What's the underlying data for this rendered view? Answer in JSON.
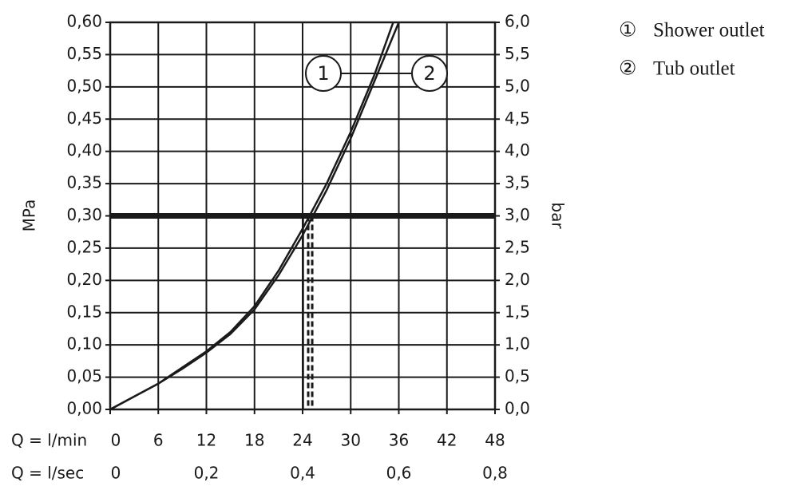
{
  "chart_data": {
    "type": "line",
    "ylabel": "MPa",
    "y2label": "bar",
    "xlabel": "Q = l/min",
    "x2label": "Q = l/sec",
    "xlim": [
      0,
      48
    ],
    "xticks": [
      0,
      6,
      12,
      18,
      24,
      30,
      36,
      42,
      48
    ],
    "x2lim": [
      0,
      0.8
    ],
    "x2ticks": [
      0,
      {
        "value": 0.2,
        "label": "0,2"
      },
      {
        "value": 0.4,
        "label": "0,4"
      },
      {
        "value": 0.6,
        "label": "0,6"
      },
      {
        "value": 0.8,
        "label": "0,8"
      }
    ],
    "ylim": [
      0,
      0.6
    ],
    "yticks": [
      {
        "value": 0,
        "label": "0,00"
      },
      {
        "value": 0.05,
        "label": "0,05"
      },
      {
        "value": 0.1,
        "label": "0,10"
      },
      {
        "value": 0.15,
        "label": "0,15"
      },
      {
        "value": 0.2,
        "label": "0,20"
      },
      {
        "value": 0.25,
        "label": "0,25"
      },
      {
        "value": 0.3,
        "label": "0,30"
      },
      {
        "value": 0.35,
        "label": "0,35"
      },
      {
        "value": 0.4,
        "label": "0,40"
      },
      {
        "value": 0.45,
        "label": "0,45"
      },
      {
        "value": 0.5,
        "label": "0,50"
      },
      {
        "value": 0.55,
        "label": "0,55"
      },
      {
        "value": 0.6,
        "label": "0,60"
      }
    ],
    "y2lim": [
      0,
      6
    ],
    "y2ticks": [
      {
        "value": 0,
        "label": "0,0"
      },
      {
        "value": 0.5,
        "label": "0,5"
      },
      {
        "value": 1,
        "label": "1,0"
      },
      {
        "value": 1.5,
        "label": "1,5"
      },
      {
        "value": 2,
        "label": "2,0"
      },
      {
        "value": 2.5,
        "label": "2,5"
      },
      {
        "value": 3,
        "label": "3,0"
      },
      {
        "value": 3.5,
        "label": "3,5"
      },
      {
        "value": 4,
        "label": "4,0"
      },
      {
        "value": 4.5,
        "label": "4,5"
      },
      {
        "value": 5,
        "label": "5,0"
      },
      {
        "value": 5.5,
        "label": "5,5"
      },
      {
        "value": 6,
        "label": "6,0"
      }
    ],
    "grid": true,
    "reference_line": 0.3,
    "drop_lines": [
      24.1,
      24.7,
      25.2
    ],
    "series": [
      {
        "name": "Shower outlet",
        "marker": "①",
        "callout": "1",
        "color": "#1a1a1a",
        "x": [
          0,
          3,
          6,
          9,
          12,
          15,
          18,
          21,
          24,
          27,
          30,
          33,
          35.3
        ],
        "values": [
          0,
          0.02,
          0.04,
          0.065,
          0.09,
          0.12,
          0.16,
          0.215,
          0.28,
          0.35,
          0.43,
          0.52,
          0.6
        ]
      },
      {
        "name": "Tub outlet",
        "marker": "②",
        "callout": "2",
        "color": "#1a1a1a",
        "x": [
          0,
          3,
          6,
          9,
          12,
          15,
          18,
          21,
          24,
          27,
          30,
          33,
          36
        ],
        "values": [
          0,
          0.02,
          0.04,
          0.063,
          0.088,
          0.117,
          0.155,
          0.208,
          0.27,
          0.34,
          0.42,
          0.51,
          0.6
        ]
      }
    ]
  }
}
